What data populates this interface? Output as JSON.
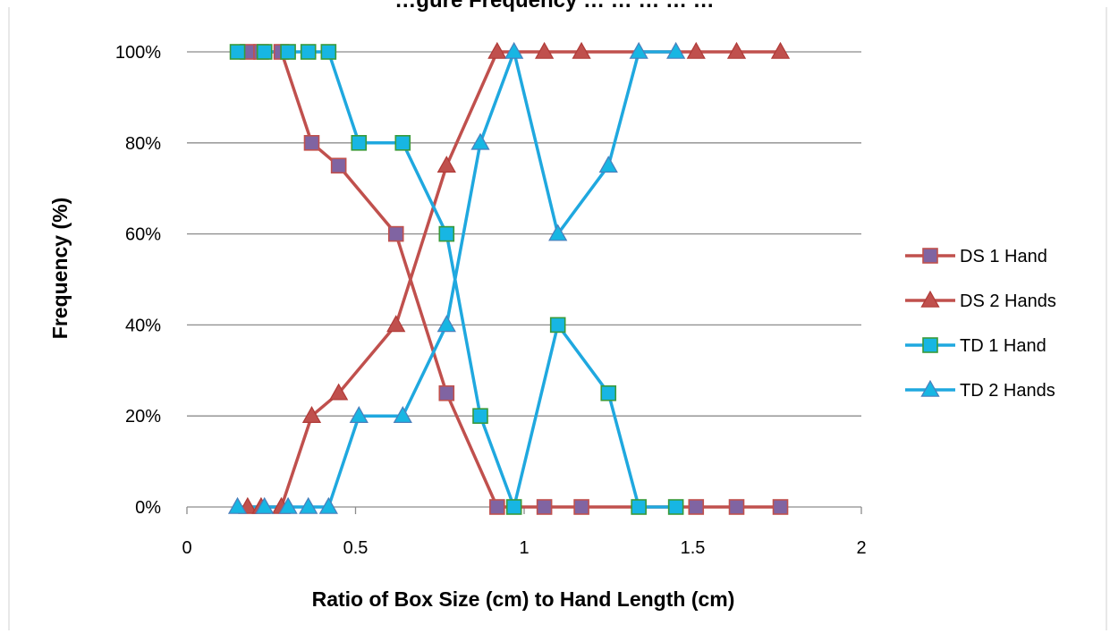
{
  "chart_data": {
    "type": "line",
    "title": "…gure Frequency … … … … …",
    "xlabel": "Ratio of Box Size (cm) to Hand Length (cm)",
    "ylabel": "Frequency (%)",
    "xlim": [
      0,
      2
    ],
    "ylim": [
      0,
      100
    ],
    "x_ticks": [
      0,
      0.5,
      1,
      1.5,
      2
    ],
    "x_tick_labels": [
      "0",
      "0.5",
      "1",
      "1.5",
      "2"
    ],
    "y_ticks": [
      0,
      20,
      40,
      60,
      80,
      100
    ],
    "y_tick_labels": [
      "0%",
      "20%",
      "40%",
      "60%",
      "80%",
      "100%"
    ],
    "grid": "horizontal",
    "legend_position": "right",
    "series": [
      {
        "name": "DS 1 Hand",
        "color": "#c0504d",
        "marker": "square",
        "marker_fill": "#8064a2",
        "points": [
          [
            0.18,
            100
          ],
          [
            0.22,
            100
          ],
          [
            0.28,
            100
          ],
          [
            0.37,
            80
          ],
          [
            0.45,
            75
          ],
          [
            0.62,
            60
          ],
          [
            0.77,
            25
          ],
          [
            0.92,
            0
          ],
          [
            1.06,
            0
          ],
          [
            1.17,
            0
          ],
          [
            1.51,
            0
          ],
          [
            1.63,
            0
          ],
          [
            1.76,
            0
          ]
        ]
      },
      {
        "name": "DS 2 Hands",
        "color": "#c0504d",
        "marker": "triangle",
        "marker_fill": "#c0504d",
        "points": [
          [
            0.18,
            0
          ],
          [
            0.22,
            0
          ],
          [
            0.28,
            0
          ],
          [
            0.37,
            20
          ],
          [
            0.45,
            25
          ],
          [
            0.62,
            40
          ],
          [
            0.77,
            75
          ],
          [
            0.92,
            100
          ],
          [
            1.06,
            100
          ],
          [
            1.17,
            100
          ],
          [
            1.51,
            100
          ],
          [
            1.63,
            100
          ],
          [
            1.76,
            100
          ]
        ]
      },
      {
        "name": "TD 1 Hand",
        "color": "#1fa8df",
        "marker": "square",
        "marker_fill": "#17b6e3",
        "points": [
          [
            0.15,
            100
          ],
          [
            0.23,
            100
          ],
          [
            0.3,
            100
          ],
          [
            0.36,
            100
          ],
          [
            0.42,
            100
          ],
          [
            0.51,
            80
          ],
          [
            0.64,
            80
          ],
          [
            0.77,
            60
          ],
          [
            0.87,
            20
          ],
          [
            0.97,
            0
          ],
          [
            1.1,
            40
          ],
          [
            1.25,
            25
          ],
          [
            1.34,
            0
          ],
          [
            1.45,
            0
          ]
        ]
      },
      {
        "name": "TD 2 Hands",
        "color": "#1fa8df",
        "marker": "triangle",
        "marker_fill": "#17b6e3",
        "points": [
          [
            0.15,
            0
          ],
          [
            0.23,
            0
          ],
          [
            0.3,
            0
          ],
          [
            0.36,
            0
          ],
          [
            0.42,
            0
          ],
          [
            0.51,
            20
          ],
          [
            0.64,
            20
          ],
          [
            0.77,
            40
          ],
          [
            0.87,
            80
          ],
          [
            0.97,
            100
          ],
          [
            1.1,
            60
          ],
          [
            1.25,
            75
          ],
          [
            1.34,
            100
          ],
          [
            1.45,
            100
          ]
        ]
      }
    ]
  }
}
